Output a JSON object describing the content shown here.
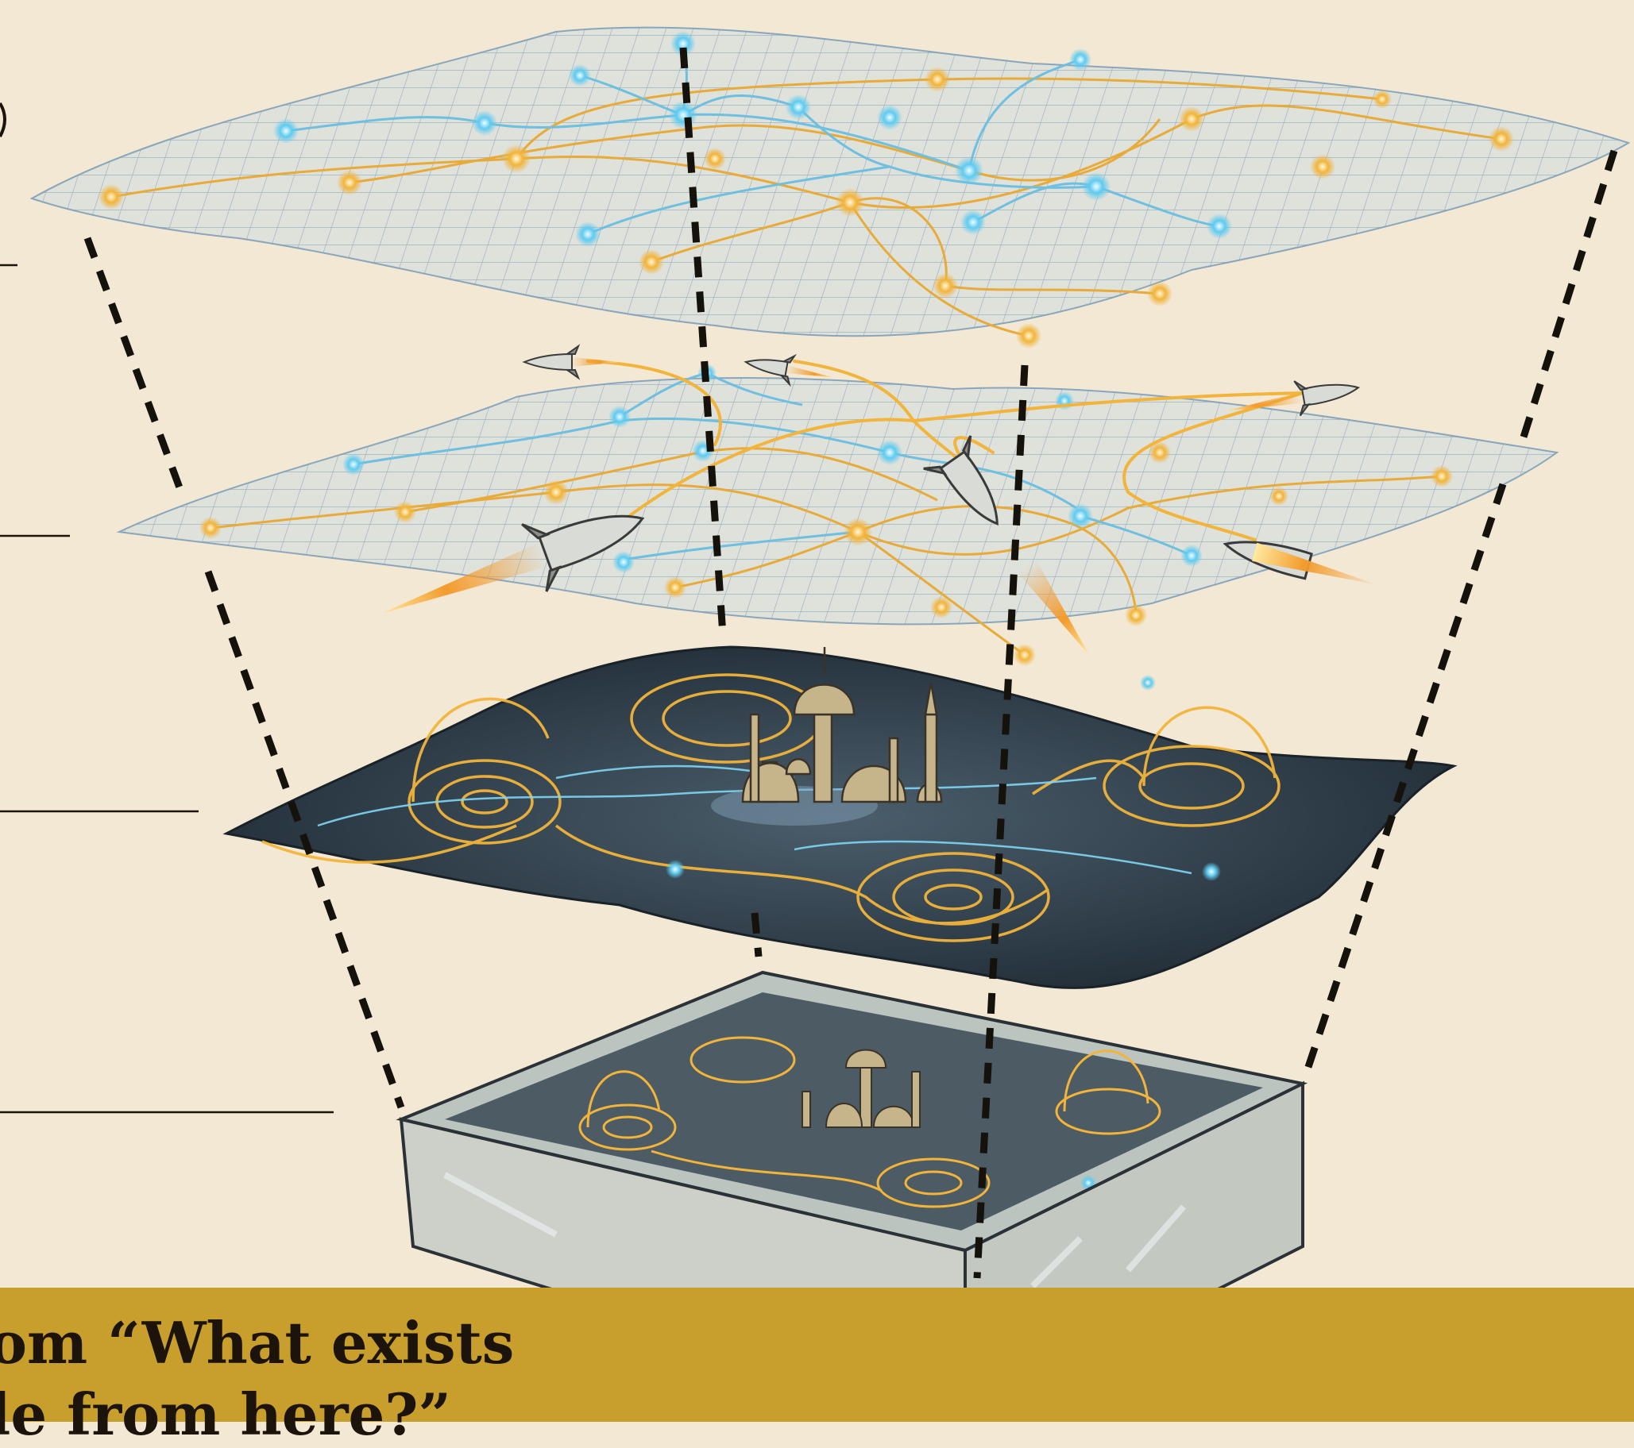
{
  "colors": {
    "paper": "#f2e8d3",
    "band": "#c89f2c",
    "ink": "#1c140a",
    "gold": "#f2b43a",
    "cyan": "#5ecbf0",
    "grid": "#7f9fb6",
    "dark_field": "#2c3a45"
  },
  "icons": [
    "rocket-icon",
    "city-icon",
    "dashed-guide-line",
    "network-node"
  ],
  "caption": {
    "line1": "om “What exists",
    "line2": "le from here?”"
  }
}
